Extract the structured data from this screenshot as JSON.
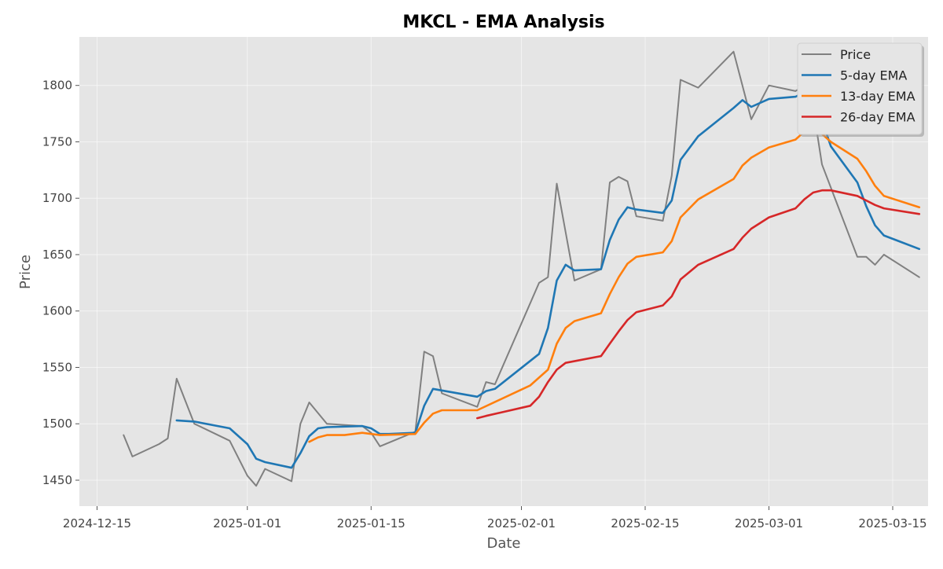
{
  "chart_data": {
    "type": "line",
    "title": "MKCL - EMA Analysis",
    "xlabel": "Date",
    "ylabel": "Price",
    "grid": true,
    "legend_position": "top-right",
    "xlim": [
      "2024-12-13",
      "2025-03-19"
    ],
    "ylim": [
      1427,
      1843
    ],
    "x_ticks": [
      "2024-12-15",
      "2025-01-01",
      "2025-01-15",
      "2025-02-01",
      "2025-02-15",
      "2025-03-01",
      "2025-03-15"
    ],
    "y_ticks": [
      1450,
      1500,
      1550,
      1600,
      1650,
      1700,
      1750,
      1800
    ],
    "series": [
      {
        "name": "Price",
        "color": "#808080",
        "points": [
          [
            "2024-12-18",
            1490
          ],
          [
            "2024-12-19",
            1471
          ],
          [
            "2024-12-22",
            1482
          ],
          [
            "2024-12-23",
            1487
          ],
          [
            "2024-12-24",
            1540
          ],
          [
            "2024-12-26",
            1500
          ],
          [
            "2024-12-30",
            1485
          ],
          [
            "2025-01-01",
            1454
          ],
          [
            "2025-01-02",
            1445
          ],
          [
            "2025-01-03",
            1460
          ],
          [
            "2025-01-06",
            1449
          ],
          [
            "2025-01-07",
            1500
          ],
          [
            "2025-01-08",
            1519
          ],
          [
            "2025-01-10",
            1500
          ],
          [
            "2025-01-14",
            1498
          ],
          [
            "2025-01-15",
            1492
          ],
          [
            "2025-01-16",
            1480
          ],
          [
            "2025-01-20",
            1493
          ],
          [
            "2025-01-21",
            1564
          ],
          [
            "2025-01-22",
            1560
          ],
          [
            "2025-01-23",
            1527
          ],
          [
            "2025-01-27",
            1515
          ],
          [
            "2025-01-28",
            1537
          ],
          [
            "2025-01-29",
            1535
          ],
          [
            "2025-02-03",
            1625
          ],
          [
            "2025-02-04",
            1630
          ],
          [
            "2025-02-05",
            1713
          ],
          [
            "2025-02-07",
            1627
          ],
          [
            "2025-02-10",
            1637
          ],
          [
            "2025-02-11",
            1714
          ],
          [
            "2025-02-12",
            1719
          ],
          [
            "2025-02-13",
            1715
          ],
          [
            "2025-02-14",
            1684
          ],
          [
            "2025-02-17",
            1680
          ],
          [
            "2025-02-18",
            1720
          ],
          [
            "2025-02-19",
            1805
          ],
          [
            "2025-02-21",
            1798
          ],
          [
            "2025-02-25",
            1830
          ],
          [
            "2025-02-27",
            1770
          ],
          [
            "2025-03-01",
            1800
          ],
          [
            "2025-03-04",
            1795
          ],
          [
            "2025-03-05",
            1800
          ],
          [
            "2025-03-06",
            1780
          ],
          [
            "2025-03-07",
            1730
          ],
          [
            "2025-03-11",
            1648
          ],
          [
            "2025-03-12",
            1648
          ],
          [
            "2025-03-13",
            1641
          ],
          [
            "2025-03-14",
            1650
          ],
          [
            "2025-03-18",
            1630
          ]
        ]
      },
      {
        "name": "5-day EMA",
        "color": "#1f77b4",
        "points": [
          [
            "2024-12-24",
            1503
          ],
          [
            "2024-12-26",
            1502
          ],
          [
            "2024-12-30",
            1496
          ],
          [
            "2025-01-01",
            1482
          ],
          [
            "2025-01-02",
            1469
          ],
          [
            "2025-01-03",
            1466
          ],
          [
            "2025-01-06",
            1461
          ],
          [
            "2025-01-07",
            1474
          ],
          [
            "2025-01-08",
            1489
          ],
          [
            "2025-01-09",
            1496
          ],
          [
            "2025-01-10",
            1497
          ],
          [
            "2025-01-14",
            1498
          ],
          [
            "2025-01-15",
            1496
          ],
          [
            "2025-01-16",
            1491
          ],
          [
            "2025-01-17",
            1491
          ],
          [
            "2025-01-20",
            1492
          ],
          [
            "2025-01-21",
            1516
          ],
          [
            "2025-01-22",
            1531
          ],
          [
            "2025-01-27",
            1524
          ],
          [
            "2025-01-28",
            1529
          ],
          [
            "2025-01-29",
            1531
          ],
          [
            "2025-02-03",
            1562
          ],
          [
            "2025-02-04",
            1585
          ],
          [
            "2025-02-05",
            1627
          ],
          [
            "2025-02-06",
            1641
          ],
          [
            "2025-02-07",
            1636
          ],
          [
            "2025-02-10",
            1637
          ],
          [
            "2025-02-11",
            1663
          ],
          [
            "2025-02-12",
            1681
          ],
          [
            "2025-02-13",
            1692
          ],
          [
            "2025-02-14",
            1690
          ],
          [
            "2025-02-17",
            1687
          ],
          [
            "2025-02-18",
            1698
          ],
          [
            "2025-02-19",
            1734
          ],
          [
            "2025-02-21",
            1755
          ],
          [
            "2025-02-25",
            1780
          ],
          [
            "2025-02-26",
            1787
          ],
          [
            "2025-02-27",
            1781
          ],
          [
            "2025-03-01",
            1788
          ],
          [
            "2025-03-04",
            1790
          ],
          [
            "2025-03-05",
            1794
          ],
          [
            "2025-03-06",
            1788
          ],
          [
            "2025-03-07",
            1769
          ],
          [
            "2025-03-08",
            1746
          ],
          [
            "2025-03-11",
            1714
          ],
          [
            "2025-03-12",
            1693
          ],
          [
            "2025-03-13",
            1676
          ],
          [
            "2025-03-14",
            1667
          ],
          [
            "2025-03-18",
            1655
          ]
        ]
      },
      {
        "name": "13-day EMA",
        "color": "#ff7f0e",
        "points": [
          [
            "2025-01-08",
            1484
          ],
          [
            "2025-01-09",
            1488
          ],
          [
            "2025-01-10",
            1490
          ],
          [
            "2025-01-12",
            1490
          ],
          [
            "2025-01-14",
            1492
          ],
          [
            "2025-01-15",
            1491
          ],
          [
            "2025-01-16",
            1490
          ],
          [
            "2025-01-20",
            1491
          ],
          [
            "2025-01-21",
            1501
          ],
          [
            "2025-01-22",
            1509
          ],
          [
            "2025-01-23",
            1512
          ],
          [
            "2025-01-27",
            1512
          ],
          [
            "2025-02-02",
            1534
          ],
          [
            "2025-02-04",
            1548
          ],
          [
            "2025-02-05",
            1571
          ],
          [
            "2025-02-06",
            1585
          ],
          [
            "2025-02-07",
            1591
          ],
          [
            "2025-02-10",
            1598
          ],
          [
            "2025-02-11",
            1615
          ],
          [
            "2025-02-12",
            1630
          ],
          [
            "2025-02-13",
            1642
          ],
          [
            "2025-02-14",
            1648
          ],
          [
            "2025-02-17",
            1652
          ],
          [
            "2025-02-18",
            1662
          ],
          [
            "2025-02-19",
            1683
          ],
          [
            "2025-02-21",
            1699
          ],
          [
            "2025-02-25",
            1717
          ],
          [
            "2025-02-26",
            1729
          ],
          [
            "2025-02-27",
            1736
          ],
          [
            "2025-03-01",
            1745
          ],
          [
            "2025-03-04",
            1752
          ],
          [
            "2025-03-05",
            1759
          ],
          [
            "2025-03-06",
            1762
          ],
          [
            "2025-03-07",
            1757
          ],
          [
            "2025-03-08",
            1750
          ],
          [
            "2025-03-11",
            1735
          ],
          [
            "2025-03-12",
            1724
          ],
          [
            "2025-03-13",
            1711
          ],
          [
            "2025-03-14",
            1702
          ],
          [
            "2025-03-18",
            1692
          ]
        ]
      },
      {
        "name": "26-day EMA",
        "color": "#d62728",
        "points": [
          [
            "2025-01-27",
            1505
          ],
          [
            "2025-01-28",
            1507
          ],
          [
            "2025-02-02",
            1516
          ],
          [
            "2025-02-03",
            1524
          ],
          [
            "2025-02-04",
            1537
          ],
          [
            "2025-02-05",
            1548
          ],
          [
            "2025-02-06",
            1554
          ],
          [
            "2025-02-10",
            1560
          ],
          [
            "2025-02-11",
            1571
          ],
          [
            "2025-02-12",
            1582
          ],
          [
            "2025-02-13",
            1592
          ],
          [
            "2025-02-14",
            1599
          ],
          [
            "2025-02-17",
            1605
          ],
          [
            "2025-02-18",
            1613
          ],
          [
            "2025-02-19",
            1628
          ],
          [
            "2025-02-21",
            1641
          ],
          [
            "2025-02-25",
            1655
          ],
          [
            "2025-02-26",
            1665
          ],
          [
            "2025-02-27",
            1673
          ],
          [
            "2025-03-01",
            1683
          ],
          [
            "2025-03-04",
            1691
          ],
          [
            "2025-03-05",
            1699
          ],
          [
            "2025-03-06",
            1705
          ],
          [
            "2025-03-07",
            1707
          ],
          [
            "2025-03-08",
            1707
          ],
          [
            "2025-03-11",
            1702
          ],
          [
            "2025-03-12",
            1698
          ],
          [
            "2025-03-13",
            1694
          ],
          [
            "2025-03-14",
            1691
          ],
          [
            "2025-03-18",
            1686
          ]
        ]
      }
    ]
  }
}
